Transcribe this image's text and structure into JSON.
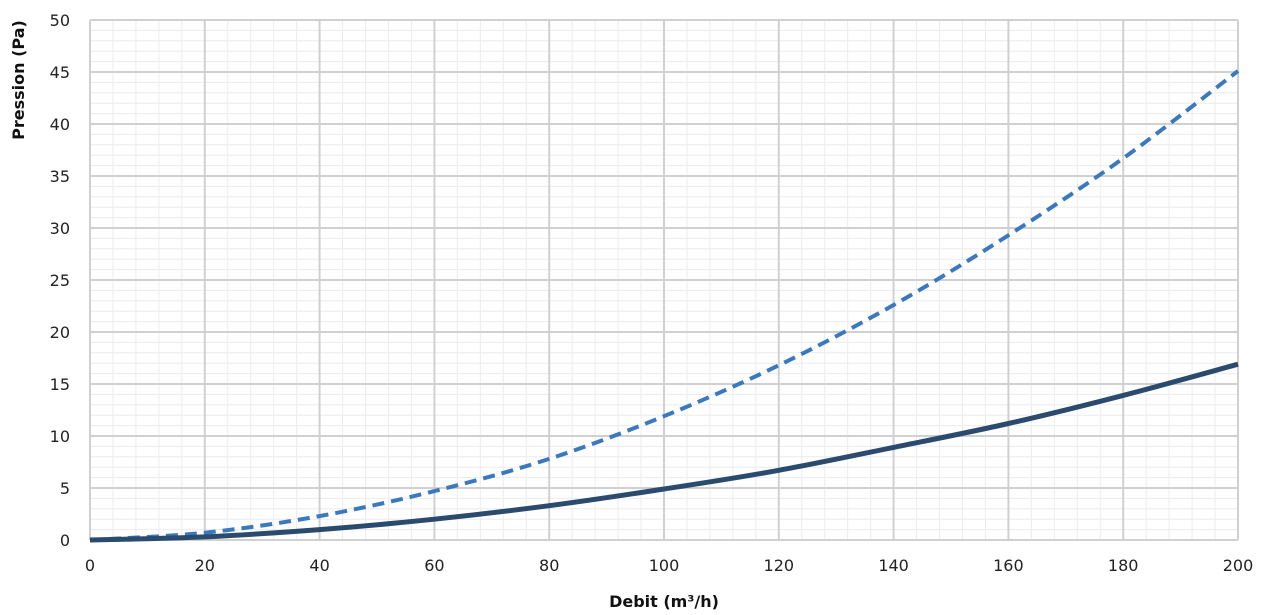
{
  "chart_data": {
    "type": "line",
    "title": "",
    "xlabel": "Debit (m³/h)",
    "ylabel": "Pression (Pa)",
    "xlim": [
      0,
      200
    ],
    "ylim": [
      0,
      50
    ],
    "x_ticks": [
      0,
      20,
      40,
      60,
      80,
      100,
      120,
      140,
      160,
      180,
      200
    ],
    "y_ticks": [
      0,
      5,
      10,
      15,
      20,
      25,
      30,
      35,
      40,
      45,
      50
    ],
    "grid": true,
    "legend": "none",
    "x": [
      0,
      20,
      40,
      60,
      80,
      100,
      120,
      140,
      160,
      180,
      200
    ],
    "series": [
      {
        "values": [
          0,
          0.7,
          2.3,
          4.7,
          7.8,
          11.9,
          16.8,
          22.6,
          29.3,
          36.7,
          45.1
        ],
        "color": "#3a78c0",
        "style": "dashed"
      },
      {
        "values": [
          0,
          0.3,
          1.0,
          2.0,
          3.3,
          4.9,
          6.7,
          8.9,
          11.2,
          13.9,
          16.9
        ],
        "color": "#2a4a6e",
        "style": "solid"
      }
    ]
  }
}
